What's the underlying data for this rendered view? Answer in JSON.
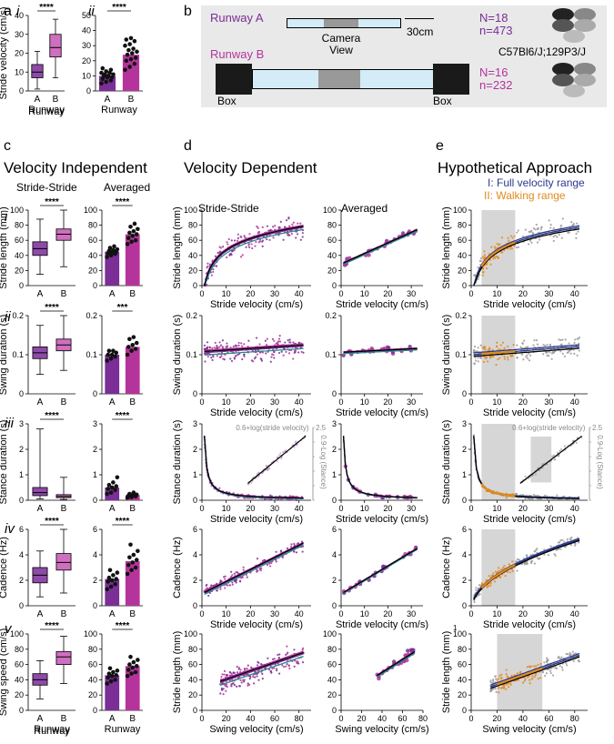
{
  "labels": {
    "a": "a",
    "a_i": "i",
    "a_ii": "ii",
    "b": "b",
    "c": "c",
    "d": "d",
    "e": "e",
    "rows": [
      "i",
      "ii",
      "iii",
      "iv",
      "v"
    ]
  },
  "headings": {
    "c": "Velocity Independent",
    "d": "Velocity Dependent",
    "e": "Hypothetical Approach",
    "c_sub1": "Stride-Stride",
    "c_sub2": "Averaged",
    "d_sub1": "Stride-Stride",
    "d_sub2": "Averaged",
    "e_legend1": "I: Full velocity range",
    "e_legend2": "II: Walking range"
  },
  "schematic": {
    "runway_a": "Runway A",
    "runway_b": "Runway B",
    "camera_view": "Camera\nView",
    "scale": "30cm",
    "box_left": "Box",
    "box_right": "Box",
    "n_a": "N=18",
    "n_a_small": "n=473",
    "n_b": "N=16",
    "n_b_small": "n=232",
    "strain": "C57Bl6/J;129P3/J"
  },
  "colors": {
    "purple": "#7a2e96",
    "magenta": "#b5349c",
    "grey_box": "#e9e9e9",
    "light_blue": "#d3ecf7",
    "orange": "#e08a1e",
    "navy": "#2c3a8c",
    "teal": "#2a8a8a",
    "scatter_grey": "#9a9a9a",
    "shade": "#d6d6d6"
  },
  "chart_data": [
    {
      "id": "a_i_box",
      "type": "box",
      "ylabel": "Stride velocity (cm/s)",
      "xlabel": "Runway",
      "categories": [
        "A",
        "B"
      ],
      "ylim": [
        0,
        40
      ],
      "yticks": [
        0,
        10,
        20,
        30,
        40
      ],
      "sig": "****",
      "boxes": [
        {
          "min": 1,
          "q1": 7,
          "med": 10,
          "q3": 14,
          "max": 21
        },
        {
          "min": 7,
          "q1": 18,
          "med": 23,
          "q3": 30,
          "max": 38
        }
      ]
    },
    {
      "id": "a_ii_bar",
      "type": "bar",
      "ylabel": "",
      "xlabel": "Runway",
      "categories": [
        "A",
        "B"
      ],
      "ylim": [
        0,
        50
      ],
      "yticks": [
        0,
        10,
        20,
        30,
        40,
        50
      ],
      "sig": "****",
      "values": [
        10,
        24
      ],
      "points": [
        [
          5,
          6,
          7,
          8,
          9,
          9,
          10,
          10,
          11,
          11,
          12,
          12,
          13,
          14,
          15
        ],
        [
          14,
          16,
          18,
          20,
          21,
          22,
          24,
          25,
          26,
          27,
          28,
          30,
          31,
          33,
          34,
          35
        ]
      ]
    },
    {
      "id": "c_i_box",
      "type": "box",
      "ylabel": "Stride length (mm)",
      "categories": [
        "A",
        "B"
      ],
      "ylim": [
        0,
        100
      ],
      "yticks": [
        0,
        20,
        40,
        60,
        80,
        100
      ],
      "sig": "****",
      "boxes": [
        {
          "min": 15,
          "q1": 40,
          "med": 49,
          "q3": 58,
          "max": 88
        },
        {
          "min": 25,
          "q1": 60,
          "med": 68,
          "q3": 75,
          "max": 100
        }
      ]
    },
    {
      "id": "c_i_bar",
      "type": "bar",
      "ylabel": "",
      "categories": [
        "A",
        "B"
      ],
      "ylim": [
        0,
        100
      ],
      "yticks": [
        0,
        20,
        40,
        60,
        80,
        100
      ],
      "sig": "****",
      "values": [
        45,
        68
      ],
      "points": [
        [
          38,
          40,
          42,
          43,
          44,
          45,
          46,
          47,
          48,
          50,
          52
        ],
        [
          55,
          58,
          60,
          63,
          66,
          68,
          70,
          72,
          75,
          78,
          82
        ]
      ]
    },
    {
      "id": "c_ii_box",
      "type": "box",
      "ylabel": "Swing duration (s)",
      "categories": [
        "A",
        "B"
      ],
      "ylim": [
        0,
        0.2
      ],
      "yticks": [
        0,
        0.1,
        0.2
      ],
      "sig": "****",
      "boxes": [
        {
          "min": 0.05,
          "q1": 0.09,
          "med": 0.105,
          "q3": 0.12,
          "max": 0.175
        },
        {
          "min": 0.06,
          "q1": 0.11,
          "med": 0.125,
          "q3": 0.14,
          "max": 0.2
        }
      ]
    },
    {
      "id": "c_ii_bar",
      "type": "bar",
      "ylabel": "",
      "categories": [
        "A",
        "B"
      ],
      "ylim": [
        0,
        0.2
      ],
      "yticks": [
        0,
        0.1,
        0.2
      ],
      "sig": "***",
      "values": [
        0.1,
        0.12
      ],
      "points": [
        [
          0.085,
          0.09,
          0.095,
          0.1,
          0.1,
          0.105,
          0.11,
          0.11
        ],
        [
          0.1,
          0.11,
          0.115,
          0.12,
          0.125,
          0.13,
          0.14,
          0.145
        ]
      ]
    },
    {
      "id": "c_iii_box",
      "type": "box",
      "ylabel": "Stance duration (s)",
      "categories": [
        "A",
        "B"
      ],
      "ylim": [
        0,
        3
      ],
      "yticks": [
        0,
        1,
        2,
        3
      ],
      "sig": "****",
      "boxes": [
        {
          "min": 0.05,
          "q1": 0.18,
          "med": 0.3,
          "q3": 0.5,
          "max": 2.8
        },
        {
          "min": 0.03,
          "q1": 0.1,
          "med": 0.15,
          "q3": 0.22,
          "max": 0.9
        }
      ]
    },
    {
      "id": "c_iii_bar",
      "type": "bar",
      "ylabel": "",
      "categories": [
        "A",
        "B"
      ],
      "ylim": [
        0,
        3
      ],
      "yticks": [
        0,
        1,
        2,
        3
      ],
      "sig": "****",
      "values": [
        0.5,
        0.2
      ],
      "points": [
        [
          0.25,
          0.3,
          0.4,
          0.45,
          0.5,
          0.55,
          0.6,
          0.7,
          0.9
        ],
        [
          0.1,
          0.12,
          0.15,
          0.18,
          0.2,
          0.22,
          0.25,
          0.3
        ]
      ]
    },
    {
      "id": "c_iv_box",
      "type": "box",
      "ylabel": "Cadence (Hz)",
      "categories": [
        "A",
        "B"
      ],
      "ylim": [
        0,
        6
      ],
      "yticks": [
        0,
        2,
        4,
        6
      ],
      "sig": "****",
      "boxes": [
        {
          "min": 0.7,
          "q1": 1.8,
          "med": 2.4,
          "q3": 3.0,
          "max": 4.3
        },
        {
          "min": 1.0,
          "q1": 2.8,
          "med": 3.4,
          "q3": 4.1,
          "max": 6.0
        }
      ]
    },
    {
      "id": "c_iv_bar",
      "type": "bar",
      "ylabel": "",
      "categories": [
        "A",
        "B"
      ],
      "ylim": [
        0,
        6
      ],
      "yticks": [
        0,
        2,
        4,
        6
      ],
      "sig": "****",
      "values": [
        2.1,
        3.5
      ],
      "points": [
        [
          1.3,
          1.5,
          1.7,
          1.9,
          2.0,
          2.1,
          2.2,
          2.4,
          2.6,
          2.8
        ],
        [
          2.5,
          2.8,
          3.0,
          3.2,
          3.4,
          3.6,
          3.8,
          4.0,
          4.3,
          4.8
        ]
      ]
    },
    {
      "id": "c_v_box",
      "type": "box",
      "ylabel": "Swing speed (cm/s)",
      "xlabel": "Runway",
      "categories": [
        "A",
        "B"
      ],
      "ylim": [
        0,
        100
      ],
      "yticks": [
        0,
        20,
        40,
        60,
        80,
        100
      ],
      "sig": "****",
      "boxes": [
        {
          "min": 15,
          "q1": 33,
          "med": 40,
          "q3": 48,
          "max": 65
        },
        {
          "min": 35,
          "q1": 60,
          "med": 70,
          "q3": 77,
          "max": 97
        }
      ]
    },
    {
      "id": "c_v_bar",
      "type": "bar",
      "ylabel": "",
      "xlabel": "Runway",
      "categories": [
        "A",
        "B"
      ],
      "ylim": [
        0,
        100
      ],
      "yticks": [
        0,
        20,
        40,
        60,
        80,
        100
      ],
      "sig": "****",
      "values": [
        46,
        58
      ],
      "points": [
        [
          35,
          38,
          40,
          43,
          45,
          46,
          48,
          50,
          52,
          55
        ],
        [
          45,
          48,
          50,
          53,
          56,
          58,
          60,
          63,
          66,
          70
        ]
      ]
    },
    {
      "id": "d_i_stride",
      "type": "scatter",
      "ylabel": "Stride length (mm)",
      "xlabel": "Stride velocity (cm/s)",
      "xlim": [
        0,
        45
      ],
      "xticks": [
        0,
        10,
        20,
        30,
        40
      ],
      "ylim": [
        0,
        100
      ],
      "yticks": [
        0,
        20,
        40,
        60,
        80,
        100
      ],
      "model": "log",
      "a": -5,
      "b": 22,
      "spread": 12,
      "fit": [
        [
          2,
          27
        ],
        [
          42,
          80
        ]
      ]
    },
    {
      "id": "d_i_avg",
      "type": "scatter_avg",
      "ylabel": "",
      "xlabel": "Stride velocity (cm/s)",
      "xlim": [
        0,
        35
      ],
      "xticks": [
        0,
        10,
        20,
        30
      ],
      "ylim": [
        0,
        100
      ],
      "yticks": [
        0,
        20,
        40,
        60,
        80,
        100
      ],
      "model": "lin",
      "a": 28,
      "b": 1.4,
      "spread": 5
    },
    {
      "id": "d_ii_stride",
      "type": "scatter",
      "ylabel": "Swing duration (s)",
      "xlabel": "Stride velocity (cm/s)",
      "xlim": [
        0,
        45
      ],
      "xticks": [
        0,
        10,
        20,
        30,
        40
      ],
      "ylim": [
        0,
        0.2
      ],
      "yticks": [
        0,
        0.1,
        0.2
      ],
      "model": "lin",
      "a": 0.105,
      "b": 0.0004,
      "spread": 0.025
    },
    {
      "id": "d_ii_avg",
      "type": "scatter_avg",
      "ylabel": "",
      "xlabel": "Stride velocity (cm/s)",
      "xlim": [
        0,
        35
      ],
      "xticks": [
        0,
        10,
        20,
        30
      ],
      "ylim": [
        0,
        0.2
      ],
      "yticks": [
        0,
        0.1,
        0.2
      ],
      "model": "lin",
      "a": 0.105,
      "b": 0.0003,
      "spread": 0.01
    },
    {
      "id": "d_iii_stride",
      "type": "scatter",
      "ylabel": "Stance duration (s)",
      "xlabel": "Stride velocity (cm/s)",
      "xlim": [
        0,
        45
      ],
      "xticks": [
        0,
        10,
        20,
        30,
        40
      ],
      "ylim": [
        0,
        3
      ],
      "yticks": [
        0,
        1,
        2,
        3
      ],
      "model": "inv",
      "a": 0.02,
      "b": 2.5,
      "spread": 0.08,
      "inset_label": "0.6+log(stride velocity)",
      "right_axis_label": "0.9-Log (Stance)",
      "right_ticks": [
        0,
        0.5,
        1,
        1.5,
        2,
        2.5
      ]
    },
    {
      "id": "d_iii_avg",
      "type": "scatter_avg",
      "ylabel": "",
      "xlabel": "Stride velocity (cm/s)",
      "xlim": [
        0,
        35
      ],
      "xticks": [
        0,
        10,
        20,
        30
      ],
      "ylim": [
        0,
        3
      ],
      "yticks": [
        0,
        1,
        2,
        3
      ],
      "model": "inv",
      "a": 0.02,
      "b": 2.5,
      "spread": 0.05
    },
    {
      "id": "d_iv_stride",
      "type": "scatter",
      "ylabel": "Cadence (Hz)",
      "xlabel": "Stride velocity (cm/s)",
      "xlim": [
        0,
        45
      ],
      "xticks": [
        0,
        10,
        20,
        30,
        40
      ],
      "ylim": [
        0,
        6
      ],
      "yticks": [
        0,
        2,
        4,
        6
      ],
      "model": "lin",
      "a": 0.9,
      "b": 0.095,
      "spread": 0.45
    },
    {
      "id": "d_iv_avg",
      "type": "scatter_avg",
      "ylabel": "",
      "xlabel": "Stride velocity (cm/s)",
      "xlim": [
        0,
        35
      ],
      "xticks": [
        0,
        10,
        20,
        30
      ],
      "ylim": [
        0,
        6
      ],
      "yticks": [
        0,
        2,
        4,
        6
      ],
      "model": "lin",
      "a": 0.9,
      "b": 0.11,
      "spread": 0.2
    },
    {
      "id": "d_v_stride",
      "type": "scatter",
      "ylabel": "Stride length (mm)",
      "xlabel": "Swing velocity (cm/s)",
      "xlim": [
        0,
        90
      ],
      "xticks": [
        0,
        20,
        40,
        60,
        80
      ],
      "ylim": [
        0,
        100
      ],
      "yticks": [
        0,
        20,
        40,
        60,
        80,
        100
      ],
      "model": "lin",
      "a": 28,
      "b": 0.55,
      "spread": 14,
      "xmin_data": 15
    },
    {
      "id": "d_v_avg",
      "type": "scatter_avg",
      "ylabel": "",
      "xlabel": "Swing velocity (cm/s)",
      "xlim": [
        0,
        80
      ],
      "xticks": [
        0,
        20,
        40,
        60,
        80
      ],
      "ylim": [
        0,
        100
      ],
      "yticks": [
        0,
        20,
        40,
        60,
        80,
        100
      ],
      "model": "lin",
      "a": 15,
      "b": 0.85,
      "spread": 6,
      "xmin_data": 35,
      "xmax_data": 72
    },
    {
      "id": "e_i",
      "type": "scatter_shaded",
      "ylabel": "Stride length (mm)",
      "xlabel": "Stride velocity (cm/s)",
      "xlim": [
        0,
        45
      ],
      "xticks": [
        0,
        10,
        20,
        30,
        40
      ],
      "ylim": [
        0,
        100
      ],
      "yticks": [
        0,
        20,
        40,
        60,
        80,
        100
      ],
      "model": "log",
      "a": -5,
      "b": 22,
      "spread": 12,
      "shade": [
        4,
        17
      ]
    },
    {
      "id": "e_ii",
      "type": "scatter_shaded",
      "ylabel": "Swing duration (s)",
      "xlabel": "Stride velocity (cm/s)",
      "xlim": [
        0,
        45
      ],
      "xticks": [
        0,
        10,
        20,
        30,
        40
      ],
      "ylim": [
        0,
        0.2
      ],
      "yticks": [
        0,
        0.1,
        0.2
      ],
      "model": "lin",
      "a": 0.1,
      "b": 0.0005,
      "spread": 0.025,
      "shade": [
        4,
        17
      ]
    },
    {
      "id": "e_iii",
      "type": "scatter_shaded",
      "ylabel": "Stance duration (s)",
      "xlabel": "Stride velocity (cm/s)",
      "xlim": [
        0,
        45
      ],
      "xticks": [
        0,
        10,
        20,
        30,
        40
      ],
      "ylim": [
        0,
        3
      ],
      "yticks": [
        0,
        1,
        2,
        3
      ],
      "model": "inv",
      "a": 0.02,
      "b": 2.5,
      "spread": 0.08,
      "shade": [
        4,
        17
      ],
      "inset_label": "0.6+log(stride velocity)",
      "right_axis_label": "0.9-Log (Stance)",
      "right_ticks": [
        0,
        0.5,
        1,
        1.5,
        2,
        2.5
      ]
    },
    {
      "id": "e_iv",
      "type": "scatter_shaded",
      "ylabel": "Cadence (Hz)",
      "xlabel": "Stride velocity (cm/s)",
      "xlim": [
        0,
        45
      ],
      "xticks": [
        0,
        10,
        20,
        30,
        40
      ],
      "ylim": [
        0,
        6
      ],
      "yticks": [
        0,
        2,
        4,
        6
      ],
      "model": "sqrt",
      "a": -0.3,
      "b": 0.85,
      "spread": 0.45,
      "shade": [
        4,
        17
      ]
    },
    {
      "id": "e_v",
      "type": "scatter_shaded",
      "ylabel": "Stride length (mm)",
      "xlabel": "Swing velocity (cm/s)",
      "xlim": [
        0,
        90
      ],
      "xticks": [
        0,
        20,
        40,
        60,
        80
      ],
      "ylim": [
        0,
        100
      ],
      "yticks": [
        0,
        20,
        40,
        60,
        80,
        100
      ],
      "model": "lin",
      "a": 22,
      "b": 0.6,
      "spread": 12,
      "shade": [
        20,
        55
      ],
      "xmin_data": 15,
      "corner_tick": "1"
    }
  ]
}
